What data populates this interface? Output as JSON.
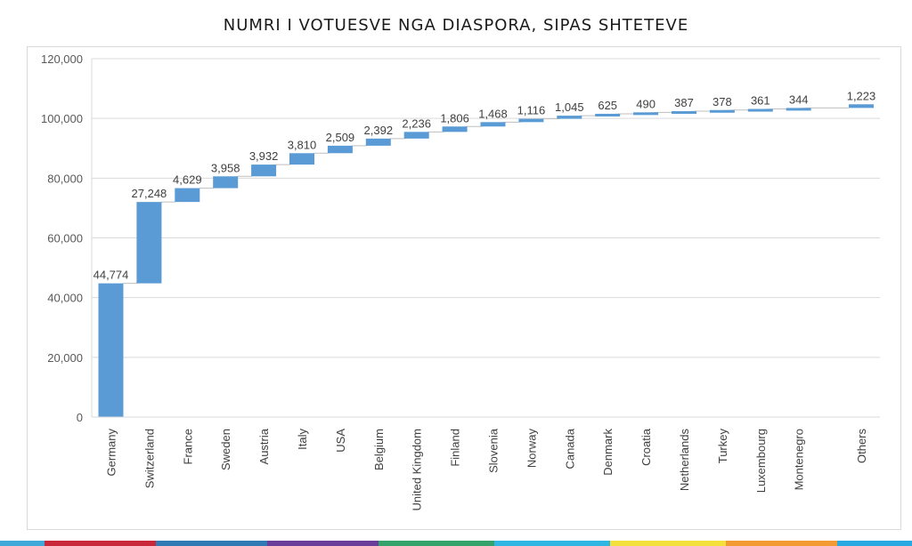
{
  "chart_data": {
    "type": "bar",
    "subtype": "waterfall",
    "title": "NUMRI I VOTUESVE NGA DIASPORA, SIPAS SHTETEVE",
    "xlabel": "",
    "ylabel": "",
    "ylim": [
      0,
      120000
    ],
    "yticks": [
      "0",
      "20,000",
      "40,000",
      "60,000",
      "80,000",
      "100,000",
      "120,000"
    ],
    "grid": true,
    "legend": "none",
    "bar_color": "#5b9bd5",
    "categories": [
      "Germany",
      "Switzerland",
      "France",
      "Sweden",
      "Austria",
      "Italy",
      "USA",
      "Belgium",
      "United Kingdom",
      "Finland",
      "Slovenia",
      "Norway",
      "Canada",
      "Denmark",
      "Croatia",
      "Netherlands",
      "Turkey",
      "Luxembourg",
      "Montenegro",
      "Others"
    ],
    "values": [
      44774,
      27248,
      4629,
      3958,
      3932,
      3810,
      2509,
      2392,
      2236,
      1806,
      1468,
      1116,
      1045,
      625,
      490,
      387,
      378,
      361,
      344,
      1223
    ],
    "value_labels": [
      "44,774",
      "27,248",
      "4,629",
      "3,958",
      "3,932",
      "3,810",
      "2,509",
      "2,392",
      "2,236",
      "1,806",
      "1,468",
      "1,116",
      "1,045",
      "625",
      "490",
      "387",
      "378",
      "361",
      "344",
      "1,223"
    ]
  },
  "footer_colors": [
    "#3fa9d9",
    "#c8283a",
    "#2f79b5",
    "#6a3d9a",
    "#34a36b",
    "#2fb6e3",
    "#f3e03b",
    "#f39a32",
    "#29a9e1"
  ]
}
